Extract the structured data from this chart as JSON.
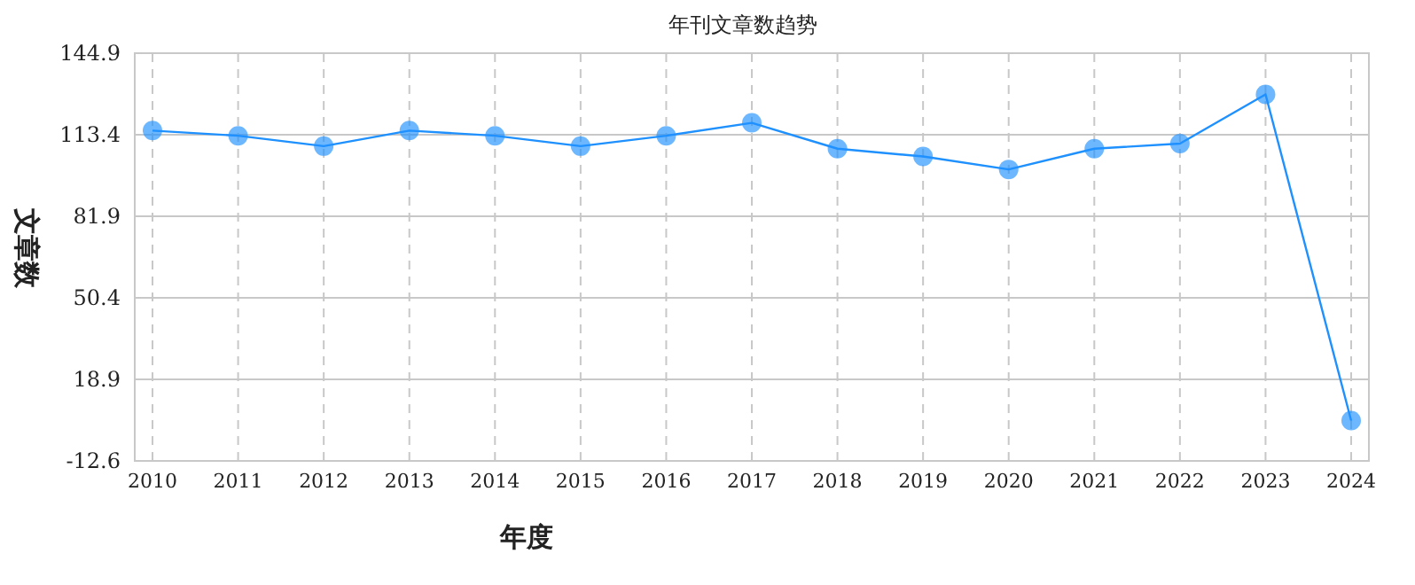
{
  "chart_data": {
    "type": "line",
    "title": "年刊文章数趋势",
    "xlabel": "年度",
    "ylabel": "文章数",
    "categories": [
      "2010",
      "2011",
      "2012",
      "2013",
      "2014",
      "2015",
      "2016",
      "2017",
      "2018",
      "2019",
      "2020",
      "2021",
      "2022",
      "2023",
      "2024"
    ],
    "series": [
      {
        "color": "#1e90ff",
        "values": [
          115,
          113,
          109,
          115,
          113,
          109,
          113,
          118,
          108,
          105,
          100,
          108,
          110,
          129,
          3
        ]
      }
    ],
    "ylim": [
      -12.6,
      144.9
    ],
    "yticks": [
      -12.6,
      18.9,
      50.4,
      81.9,
      113.4,
      144.9
    ],
    "grid": true,
    "marker": "circle"
  }
}
